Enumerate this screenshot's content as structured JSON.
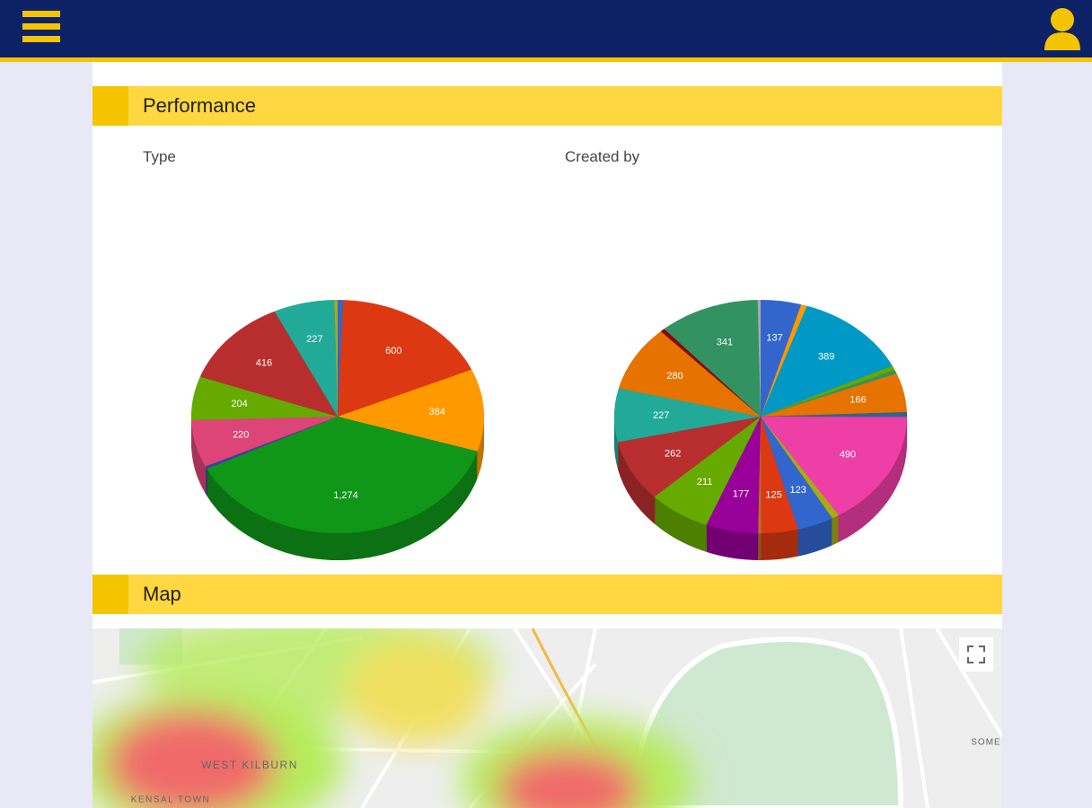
{
  "sections": [
    {
      "title": "Performance"
    },
    {
      "title": "Map"
    }
  ],
  "chart_data": [
    {
      "type": "pie",
      "title": "Type",
      "values": [
        20,
        600,
        384,
        1274,
        12,
        220,
        204,
        416,
        227,
        12
      ],
      "value_labels": [
        null,
        "600",
        "384",
        "1,274",
        null,
        "220",
        "204",
        "416",
        "227",
        null
      ],
      "colors": [
        "#3366cc",
        "#dc3912",
        "#ff9900",
        "#109618",
        "#3b3eac",
        "#dd4477",
        "#66aa00",
        "#b82e2e",
        "#22aa99",
        "#aaaa11"
      ]
    },
    {
      "type": "pie",
      "title": "Created by",
      "values": [
        137,
        20,
        389,
        20,
        15,
        166,
        20,
        490,
        25,
        123,
        125,
        10,
        177,
        211,
        262,
        227,
        280,
        15,
        341,
        10
      ],
      "value_labels": [
        "137",
        null,
        "389",
        null,
        null,
        "166",
        null,
        "490",
        null,
        "123",
        "125",
        null,
        "177",
        "211",
        "262",
        "227",
        "280",
        null,
        "341",
        null
      ],
      "colors": [
        "#3366cc",
        "#ff9900",
        "#0099c6",
        "#66aa00",
        "#329262",
        "#e67300",
        "#316395",
        "#ee3fa6",
        "#aaaa11",
        "#3366cc",
        "#dc3912",
        "#b77322",
        "#990099",
        "#66aa00",
        "#b82e2e",
        "#22aa99",
        "#e67300",
        "#8b0707",
        "#329262",
        "#aaaaaa"
      ]
    }
  ],
  "map": {
    "labels": [
      "WEST KILBURN",
      "KENSAL TOWN",
      "SOME"
    ]
  }
}
